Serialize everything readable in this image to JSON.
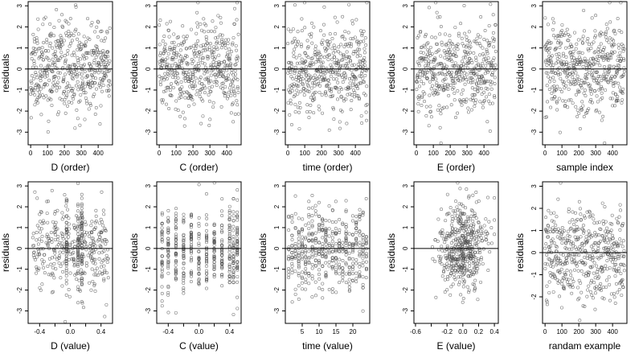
{
  "chart_data": [
    {
      "type": "scatter",
      "xlabel": "D (order)",
      "ylabel": "residuals",
      "xlim": [
        -15,
        485
      ],
      "ylim": [
        -3.6,
        3.2
      ],
      "xticks": [
        0,
        100,
        200,
        300,
        400
      ],
      "xtick_labels": [
        "0",
        "100",
        "200",
        "300",
        "400"
      ],
      "yticks": [
        -3,
        -2,
        -1,
        0,
        1,
        2,
        3
      ],
      "ytick_labels": [
        "-3",
        "-2",
        "-1",
        "0",
        "1",
        "2",
        "3"
      ],
      "reference_line_y": 0,
      "points": {
        "x_range": [
          0,
          470
        ],
        "count": 470,
        "distribution": "index",
        "seed": 11
      }
    },
    {
      "type": "scatter",
      "xlabel": "C (order)",
      "ylabel": "residuals",
      "xlim": [
        -15,
        485
      ],
      "ylim": [
        -3.6,
        3.2
      ],
      "xticks": [
        0,
        100,
        200,
        300,
        400
      ],
      "xtick_labels": [
        "0",
        "100",
        "200",
        "300",
        "400"
      ],
      "yticks": [
        -3,
        -2,
        -1,
        0,
        1,
        2,
        3
      ],
      "ytick_labels": [
        "-3",
        "-2",
        "-1",
        "0",
        "1",
        "2",
        "3"
      ],
      "reference_line_y": 0,
      "points": {
        "x_range": [
          0,
          470
        ],
        "count": 470,
        "distribution": "index",
        "seed": 23
      }
    },
    {
      "type": "scatter",
      "xlabel": "time (order)",
      "ylabel": "residuals",
      "xlim": [
        -15,
        485
      ],
      "ylim": [
        -3.6,
        3.2
      ],
      "xticks": [
        0,
        100,
        200,
        300,
        400
      ],
      "xtick_labels": [
        "0",
        "100",
        "200",
        "300",
        "400"
      ],
      "yticks": [
        -3,
        -2,
        -1,
        0,
        1,
        2,
        3
      ],
      "ytick_labels": [
        "-3",
        "-2",
        "-1",
        "0",
        "1",
        "2",
        "3"
      ],
      "reference_line_y": 0,
      "points": {
        "x_range": [
          0,
          470
        ],
        "count": 470,
        "distribution": "index",
        "seed": 37
      }
    },
    {
      "type": "scatter",
      "xlabel": "E (order)",
      "ylabel": "residuals",
      "xlim": [
        -15,
        485
      ],
      "ylim": [
        -3.6,
        3.2
      ],
      "xticks": [
        0,
        100,
        200,
        300,
        400
      ],
      "xtick_labels": [
        "0",
        "100",
        "200",
        "300",
        "400"
      ],
      "yticks": [
        -3,
        -2,
        -1,
        0,
        1,
        2,
        3
      ],
      "ytick_labels": [
        "-3",
        "-2",
        "-1",
        "0",
        "1",
        "2",
        "3"
      ],
      "reference_line_y": 0,
      "points": {
        "x_range": [
          0,
          470
        ],
        "count": 470,
        "distribution": "index",
        "seed": 41
      }
    },
    {
      "type": "scatter",
      "xlabel": "sample index",
      "ylabel": "residuals",
      "xlim": [
        -15,
        485
      ],
      "ylim": [
        -3.6,
        3.2
      ],
      "xticks": [
        0,
        100,
        200,
        300,
        400
      ],
      "xtick_labels": [
        "0",
        "100",
        "200",
        "300",
        "400"
      ],
      "yticks": [
        -3,
        -2,
        -1,
        0,
        1,
        2,
        3
      ],
      "ytick_labels": [
        "-3",
        "-2",
        "-1",
        "0",
        "1",
        "2",
        "3"
      ],
      "reference_line_y": 0,
      "points": {
        "x_range": [
          0,
          470
        ],
        "count": 470,
        "distribution": "index",
        "seed": 53
      }
    },
    {
      "type": "scatter",
      "xlabel": "D (value)",
      "ylabel": "residuals",
      "xlim": [
        -0.55,
        0.55
      ],
      "ylim": [
        -3.6,
        3.2
      ],
      "xticks": [
        -0.4,
        -0.2,
        0,
        0.2,
        0.4
      ],
      "xtick_labels": [
        "-0.4",
        "",
        "0.0",
        "",
        "0.4"
      ],
      "yticks": [
        -3,
        -2,
        -1,
        0,
        1,
        2,
        3
      ],
      "ytick_labels": [
        "-3",
        "-2",
        "-1",
        "0",
        "1",
        "2",
        "3"
      ],
      "reference_line_y": 0,
      "points": {
        "x_range": [
          -0.5,
          0.5
        ],
        "count": 470,
        "distribution": "uniform-with-stacks",
        "stacks": [
          -0.05,
          0.1,
          0.15
        ],
        "seed": 61
      }
    },
    {
      "type": "scatter",
      "xlabel": "C (value)",
      "ylabel": "residuals",
      "xlim": [
        -0.55,
        0.55
      ],
      "ylim": [
        -3.6,
        3.2
      ],
      "xticks": [
        -0.4,
        -0.2,
        0,
        0.2,
        0.4
      ],
      "xtick_labels": [
        "-0.4",
        "",
        "0.0",
        "",
        "0.4"
      ],
      "yticks": [
        -3,
        -2,
        -1,
        0,
        1,
        2,
        3
      ],
      "ytick_labels": [
        "-3",
        "-2",
        "-1",
        "0",
        "1",
        "2",
        "3"
      ],
      "reference_line_y": 0,
      "points": {
        "x_range": [
          -0.5,
          0.5
        ],
        "count": 470,
        "distribution": "discrete",
        "levels": [
          -0.48,
          -0.4,
          -0.3,
          -0.2,
          -0.1,
          0,
          0.1,
          0.2,
          0.3,
          0.4,
          0.45,
          0.5
        ],
        "seed": 71
      }
    },
    {
      "type": "scatter",
      "xlabel": "time (value)",
      "ylabel": "residuals",
      "xlim": [
        0,
        25
      ],
      "ylim": [
        -3.6,
        3.2
      ],
      "xticks": [
        5,
        10,
        15,
        20
      ],
      "xtick_labels": [
        "5",
        "10",
        "15",
        "20"
      ],
      "yticks": [
        -3,
        -2,
        -1,
        0,
        1,
        2,
        3
      ],
      "ytick_labels": [
        "-3",
        "-2",
        "-1",
        "0",
        "1",
        "2",
        "3"
      ],
      "reference_line_y": 0,
      "points": {
        "x_range": [
          1,
          24
        ],
        "count": 470,
        "distribution": "discrete",
        "levels": [
          1,
          2,
          3,
          4,
          5,
          6,
          7,
          8,
          9,
          10,
          11,
          12,
          13,
          14,
          15,
          16,
          17,
          18,
          19,
          20,
          21,
          22,
          23,
          24
        ],
        "seed": 83
      }
    },
    {
      "type": "scatter",
      "xlabel": "E (value)",
      "ylabel": "residuals",
      "xlim": [
        -0.62,
        0.45
      ],
      "ylim": [
        -3.6,
        3.2
      ],
      "xticks": [
        -0.6,
        -0.4,
        -0.2,
        0,
        0.2,
        0.4
      ],
      "xtick_labels": [
        "-0.6",
        "",
        "-0.2",
        "0.0",
        "0.2",
        "0.4"
      ],
      "yticks": [
        -3,
        -2,
        -1,
        0,
        1,
        2,
        3
      ],
      "ytick_labels": [
        "-3",
        "-2",
        "-1",
        "0",
        "1",
        "2",
        "3"
      ],
      "reference_line_y": 0,
      "points": {
        "x_range": [
          -0.5,
          0.4
        ],
        "count": 470,
        "distribution": "centered",
        "center": 0,
        "spread": 0.15,
        "seed": 97
      }
    },
    {
      "type": "scatter",
      "xlabel": "randam example",
      "ylabel": "residuals",
      "xlim": [
        -15,
        485
      ],
      "ylim": [
        -3.2,
        3.2
      ],
      "xticks": [
        0,
        100,
        200,
        300,
        400
      ],
      "xtick_labels": [
        "0",
        "100",
        "200",
        "300",
        "400"
      ],
      "yticks": [
        -2,
        -1,
        0,
        1,
        2,
        3
      ],
      "ytick_labels": [
        "-2",
        "-1",
        "0",
        "1",
        "2",
        "3"
      ],
      "reference_line_y": 0,
      "points": {
        "x_range": [
          0,
          470
        ],
        "count": 470,
        "distribution": "index",
        "seed": 101
      }
    }
  ],
  "colors": {
    "point": "#4d4d4d",
    "line": "#000000",
    "frame": "#000000",
    "background": "#ffffff"
  }
}
